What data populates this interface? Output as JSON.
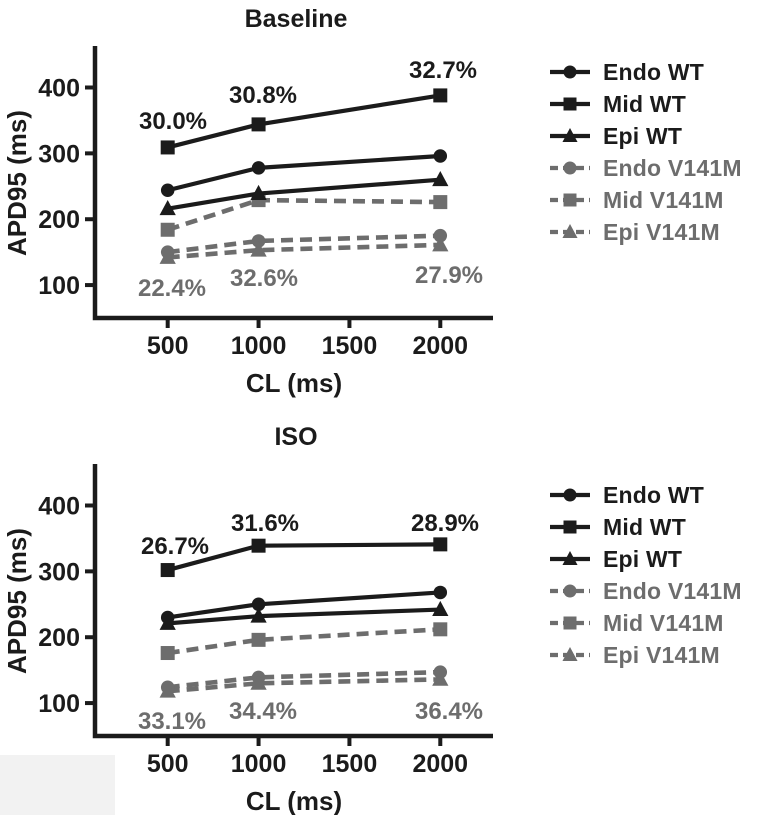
{
  "figure_title": "APD95 rate dependence figure",
  "colors": {
    "wt": "#1b1b1b",
    "v141m": "#6d6d6d",
    "background": "#ffffff"
  },
  "chart_data": [
    {
      "type": "line",
      "title": "Baseline",
      "xlabel": "CL (ms)",
      "ylabel": "APD95 (ms)",
      "x": [
        500,
        1000,
        2000
      ],
      "x_ticks": [
        500,
        1000,
        1500,
        2000
      ],
      "y_ticks": [
        100,
        200,
        300,
        400
      ],
      "xlim": [
        100,
        2290
      ],
      "ylim": [
        50,
        460
      ],
      "grid": false,
      "legend_position": "right",
      "series": [
        {
          "name": "Endo WT",
          "marker": "circle",
          "line": "solid",
          "color": "#1b1b1b",
          "values": [
            244,
            278,
            296
          ]
        },
        {
          "name": "Mid WT",
          "marker": "square",
          "line": "solid",
          "color": "#1b1b1b",
          "values": [
            309,
            344,
            388
          ]
        },
        {
          "name": "Epi WT",
          "marker": "triangle",
          "line": "solid",
          "color": "#1b1b1b",
          "values": [
            216,
            239,
            260
          ]
        },
        {
          "name": "Endo V141M",
          "marker": "circle",
          "line": "dashed",
          "color": "#6d6d6d",
          "values": [
            150,
            167,
            175
          ]
        },
        {
          "name": "Mid V141M",
          "marker": "square",
          "line": "dashed",
          "color": "#6d6d6d",
          "values": [
            184,
            229,
            226
          ]
        },
        {
          "name": "Epi V141M",
          "marker": "triangle",
          "line": "dashed",
          "color": "#6d6d6d",
          "values": [
            142,
            153,
            161
          ]
        }
      ],
      "annotations": [
        {
          "text": "30.0%",
          "color": "#1b1b1b"
        },
        {
          "text": "30.8%",
          "color": "#1b1b1b"
        },
        {
          "text": "32.7%",
          "color": "#1b1b1b"
        },
        {
          "text": "22.4%",
          "color": "#6d6d6d"
        },
        {
          "text": "32.6%",
          "color": "#6d6d6d"
        },
        {
          "text": "27.9%",
          "color": "#6d6d6d"
        }
      ]
    },
    {
      "type": "line",
      "title": "ISO",
      "xlabel": "CL (ms)",
      "ylabel": "APD95 (ms)",
      "x": [
        500,
        1000,
        2000
      ],
      "x_ticks": [
        500,
        1000,
        1500,
        2000
      ],
      "y_ticks": [
        100,
        200,
        300,
        400
      ],
      "xlim": [
        100,
        2290
      ],
      "ylim": [
        50,
        460
      ],
      "grid": false,
      "legend_position": "right",
      "series": [
        {
          "name": "Endo WT",
          "marker": "circle",
          "line": "solid",
          "color": "#1b1b1b",
          "values": [
            230,
            250,
            268
          ]
        },
        {
          "name": "Mid WT",
          "marker": "square",
          "line": "solid",
          "color": "#1b1b1b",
          "values": [
            302,
            339,
            341
          ]
        },
        {
          "name": "Epi WT",
          "marker": "triangle",
          "line": "solid",
          "color": "#1b1b1b",
          "values": [
            221,
            232,
            242
          ]
        },
        {
          "name": "Endo V141M",
          "marker": "circle",
          "line": "dashed",
          "color": "#6d6d6d",
          "values": [
            124,
            139,
            147
          ]
        },
        {
          "name": "Mid V141M",
          "marker": "square",
          "line": "dashed",
          "color": "#6d6d6d",
          "values": [
            176,
            196,
            212
          ]
        },
        {
          "name": "Epi V141M",
          "marker": "triangle",
          "line": "dashed",
          "color": "#6d6d6d",
          "values": [
            118,
            130,
            136
          ]
        }
      ],
      "annotations": [
        {
          "text": "26.7%",
          "color": "#1b1b1b"
        },
        {
          "text": "31.6%",
          "color": "#1b1b1b"
        },
        {
          "text": "28.9%",
          "color": "#1b1b1b"
        },
        {
          "text": "33.1%",
          "color": "#6d6d6d"
        },
        {
          "text": "34.4%",
          "color": "#6d6d6d"
        },
        {
          "text": "36.4%",
          "color": "#6d6d6d"
        }
      ]
    }
  ]
}
